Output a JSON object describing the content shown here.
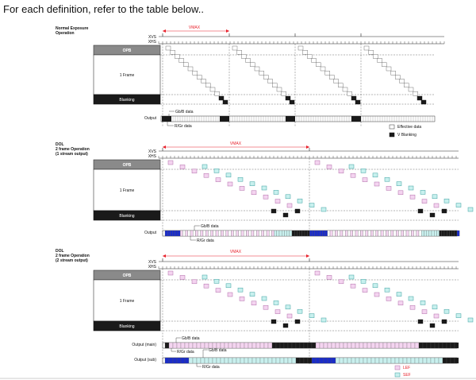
{
  "intro_text": "For each definition, refer to the table below..",
  "colors": {
    "lef": "#f4d4f0",
    "lef_border": "#b06aa8",
    "sef": "#c8f0ee",
    "sef_border": "#3aa0a0",
    "blue": "#1a2cc8",
    "dark": "#1a1a1a",
    "gray": "#8a8a8a",
    "red": "#e8202a"
  },
  "signals": {
    "xvs": "XVS",
    "xhs": "XHS"
  },
  "vmax_label": "VMAX",
  "block_labels": {
    "opb": "OPB",
    "frame": "1 Frame",
    "blanking": "Blanking"
  },
  "section1": {
    "title_line1": "Normal Exposure",
    "title_line2": "Operation",
    "output_label": "Output",
    "gbb_label": "Gb/B data",
    "rgr_label": "R/Gr data"
  },
  "legend1": {
    "effective": "Effective data",
    "vblank": "V Blanking"
  },
  "section2": {
    "title_line1": "DOL",
    "title_line2": "2 frame Operation",
    "title_line3": "(1 stream output)",
    "output_label": "Output",
    "gbb_label": "Gb/B data",
    "rgr_label": "R/Gr data"
  },
  "section3": {
    "title_line1": "DOL",
    "title_line2": "2 frame Operation",
    "title_line3": "(2 stream output)",
    "output_main_label": "Output (main)",
    "output_sub_label": "Output (sub)",
    "gbb_label_main": "Gb/B data",
    "rgr_label_main": "R/Gr data",
    "gbb_label_sub": "Gb/B data",
    "rgr_label_sub": "R/Gr data"
  },
  "legend3": {
    "lef": "LEF",
    "sef": "SEF"
  }
}
